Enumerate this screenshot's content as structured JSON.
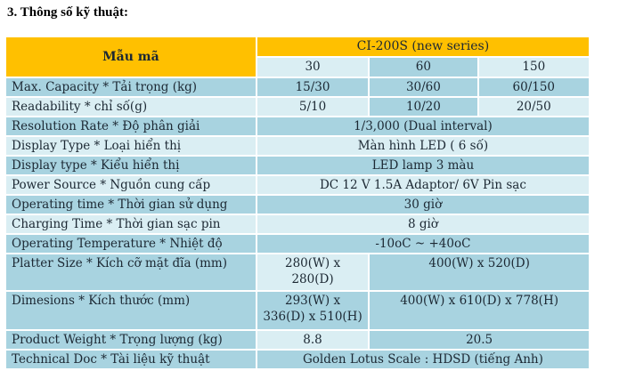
{
  "section_title": "3. Thông số kỹ thuật:",
  "colors": {
    "header_orange": "#FFC000",
    "cell_medium_blue": "#A8D3E0",
    "cell_light_blue": "#DAEEF3",
    "table_text": "#1C2833",
    "title_text": "#000000",
    "background": "#FFFFFF"
  },
  "table": {
    "header": {
      "model_label": "Mẫu mã",
      "series_label": "CI-200S (new series)",
      "capacity_columns": [
        "30",
        "60",
        "150"
      ]
    },
    "rows": [
      {
        "label": "Max. Capacity * Tải trọng (kg)",
        "values": [
          "15/30",
          "30/60",
          "60/150"
        ]
      },
      {
        "label": "Readability * chỉ số(g)",
        "values": [
          "5/10",
          "10/20",
          "20/50"
        ]
      },
      {
        "label": "Resolution Rate * Độ phân giải",
        "value": "1/3,000 (Dual interval)"
      },
      {
        "label": "Display Type  * Loại hiển thị",
        "value": "Màn hình LED ( 6 số)"
      },
      {
        "label": "Display type * Kiểu hiển thị",
        "value": "LED lamp 3 màu"
      },
      {
        "label": "Power Source * Nguồn cung cấp",
        "value": "DC 12 V 1.5A Adaptor/ 6V Pin sạc"
      },
      {
        "label": "Operating time * Thời gian sử dụng",
        "value": "30 giờ"
      },
      {
        "label": "Charging Time * Thời gian sạc pin",
        "value": "8 giờ"
      },
      {
        "label": "Operating Temperature * Nhiệt độ",
        "value": "-10oC ~ +40oC"
      },
      {
        "label": "Platter Size * Kích cỡ mặt đĩa (mm)",
        "value_30": "280(W) x\n280(D)",
        "value_60_150": "400(W) x 520(D)"
      },
      {
        "label": "Dimesions * Kích thước (mm)",
        "value_30": "293(W) x\n336(D) x 510(H)",
        "value_60_150": "400(W) x 610(D) x 778(H)"
      },
      {
        "label": "Product Weight * Trọng lượng (kg)",
        "value_30": "8.8",
        "value_60_150": "20.5"
      },
      {
        "label": "Technical Doc  *  Tài liệu kỹ thuật",
        "value": "Golden Lotus Scale : HDSD (tiếng Anh)"
      }
    ]
  }
}
